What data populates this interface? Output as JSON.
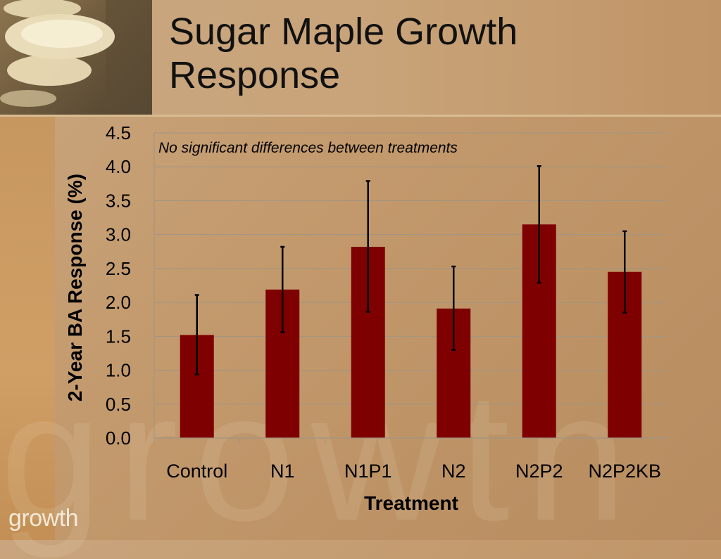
{
  "slide": {
    "title_line1": "Sugar Maple Growth",
    "title_line2": "Response",
    "logo": "growth",
    "watermark": "growth"
  },
  "colors": {
    "bar": "#7f0000",
    "error_bar": "#000000",
    "grid": "#a09484"
  },
  "chart_data": {
    "type": "bar",
    "title": "",
    "xlabel": "Treatment",
    "ylabel": "2-Year BA Response (%)",
    "annotation": "No significant differences between treatments",
    "categories": [
      "Control",
      "N1",
      "N1P1",
      "N2",
      "N2P2",
      "N2P2KB"
    ],
    "values": [
      1.52,
      2.19,
      2.82,
      1.91,
      3.15,
      2.45
    ],
    "error_high": [
      2.11,
      2.82,
      3.79,
      2.53,
      4.01,
      3.05
    ],
    "error_low": [
      0.94,
      1.56,
      1.86,
      1.3,
      2.29,
      1.85
    ],
    "ylim": [
      0,
      4.5
    ],
    "yticks": [
      "0.0",
      "0.5",
      "1.0",
      "1.5",
      "2.0",
      "2.5",
      "3.0",
      "3.5",
      "4.0",
      "4.5"
    ],
    "grid": true,
    "legend": "none"
  }
}
